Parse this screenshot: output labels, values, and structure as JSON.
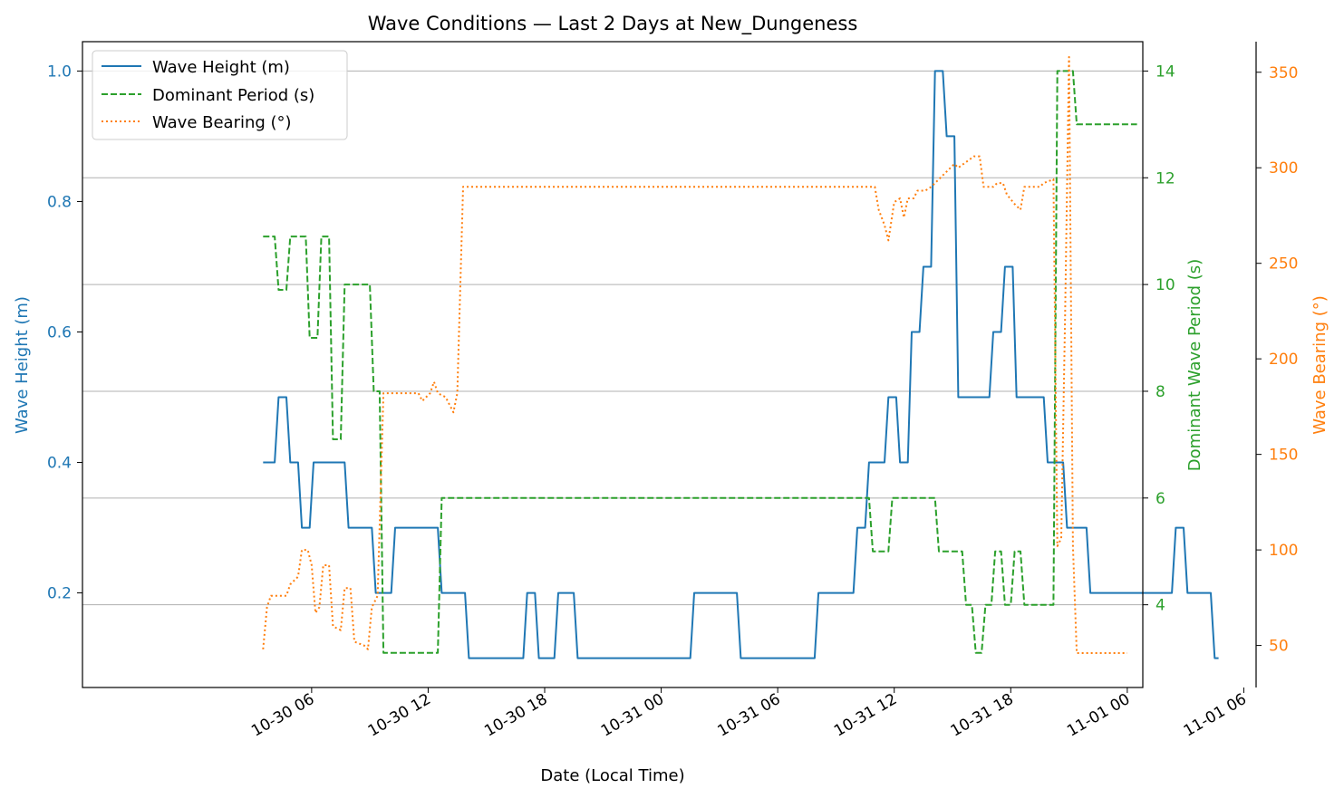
{
  "chart_data": {
    "type": "line",
    "title": "Wave Conditions — Last 2 Days at New_Dungeness",
    "xlabel": "Date (Local Time)",
    "x_range_hours": [
      -5.8,
      48.8
    ],
    "x_ticks": [
      {
        "h": 6,
        "label": "10-30 06"
      },
      {
        "h": 12,
        "label": "10-30 12"
      },
      {
        "h": 18,
        "label": "10-30 18"
      },
      {
        "h": 24,
        "label": "10-31 00"
      },
      {
        "h": 30,
        "label": "10-31 06"
      },
      {
        "h": 36,
        "label": "10-31 12"
      },
      {
        "h": 42,
        "label": "10-31 18"
      },
      {
        "h": 48,
        "label": "11-01 00"
      },
      {
        "h": 54,
        "label": "11-01 06"
      }
    ],
    "x_origin": "10-30 00",
    "grid": "horizontal (right axis)",
    "legend_position": "upper-left",
    "axes": {
      "left": {
        "label": "Wave Height (m)",
        "ylim": [
          0.055,
          1.045
        ],
        "ticks": [
          0.2,
          0.4,
          0.6,
          0.8,
          1.0
        ],
        "tick_labels": [
          "0.2",
          "0.4",
          "0.6",
          "0.8",
          "1.0"
        ],
        "color": "#1f77b4"
      },
      "right1": {
        "label": "Dominant Wave Period (s)",
        "ylim": [
          2.45,
          14.55
        ],
        "ticks": [
          4,
          6,
          8,
          10,
          12,
          14
        ],
        "tick_labels": [
          "4",
          "6",
          "8",
          "10",
          "12",
          "14"
        ],
        "color": "#2ca02c"
      },
      "right2": {
        "label": "Wave Bearing (°)",
        "ylim": [
          28,
          366
        ],
        "ticks": [
          50,
          100,
          150,
          200,
          250,
          300,
          350
        ],
        "tick_labels": [
          "50",
          "100",
          "150",
          "200",
          "250",
          "300",
          "350"
        ],
        "color": "#ff7f0e"
      }
    },
    "series": [
      {
        "name": "Wave Height (m)",
        "axis": "left",
        "color": "#1f77b4",
        "style": "solid",
        "points": [
          [
            3.5,
            0.4
          ],
          [
            4.1,
            0.4
          ],
          [
            4.3,
            0.5
          ],
          [
            4.7,
            0.5
          ],
          [
            4.9,
            0.4
          ],
          [
            5.3,
            0.4
          ],
          [
            5.5,
            0.3
          ],
          [
            5.9,
            0.3
          ],
          [
            6.1,
            0.4
          ],
          [
            7.7,
            0.4
          ],
          [
            7.9,
            0.3
          ],
          [
            9.1,
            0.3
          ],
          [
            9.3,
            0.2
          ],
          [
            10.1,
            0.2
          ],
          [
            10.3,
            0.3
          ],
          [
            12.5,
            0.3
          ],
          [
            12.7,
            0.2
          ],
          [
            13.9,
            0.2
          ],
          [
            14.1,
            0.1
          ],
          [
            16.9,
            0.1
          ],
          [
            17.1,
            0.2
          ],
          [
            17.5,
            0.2
          ],
          [
            17.7,
            0.1
          ],
          [
            18.5,
            0.1
          ],
          [
            18.7,
            0.2
          ],
          [
            19.5,
            0.2
          ],
          [
            19.7,
            0.1
          ],
          [
            25.5,
            0.1
          ],
          [
            25.7,
            0.2
          ],
          [
            27.9,
            0.2
          ],
          [
            28.1,
            0.1
          ],
          [
            31.9,
            0.1
          ],
          [
            32.1,
            0.2
          ],
          [
            33.9,
            0.2
          ],
          [
            34.1,
            0.3
          ],
          [
            34.5,
            0.3
          ],
          [
            34.7,
            0.4
          ],
          [
            35.5,
            0.4
          ],
          [
            35.7,
            0.5
          ],
          [
            36.1,
            0.5
          ],
          [
            36.3,
            0.4
          ],
          [
            36.7,
            0.4
          ],
          [
            36.9,
            0.6
          ],
          [
            37.3,
            0.6
          ],
          [
            37.5,
            0.7
          ],
          [
            37.9,
            0.7
          ],
          [
            38.1,
            1.0
          ],
          [
            38.5,
            1.0
          ],
          [
            38.7,
            0.9
          ],
          [
            39.1,
            0.9
          ],
          [
            39.3,
            0.5
          ],
          [
            40.9,
            0.5
          ],
          [
            41.1,
            0.6
          ],
          [
            41.5,
            0.6
          ],
          [
            41.7,
            0.7
          ],
          [
            42.1,
            0.7
          ],
          [
            42.3,
            0.5
          ],
          [
            43.7,
            0.5
          ],
          [
            43.9,
            0.4
          ],
          [
            44.7,
            0.4
          ],
          [
            44.9,
            0.3
          ],
          [
            45.9,
            0.3
          ],
          [
            46.1,
            0.2
          ],
          [
            50.3,
            0.2
          ],
          [
            50.5,
            0.3
          ],
          [
            50.9,
            0.3
          ],
          [
            51.1,
            0.2
          ],
          [
            52.3,
            0.2
          ],
          [
            52.5,
            0.1
          ],
          [
            52.7,
            0.1
          ]
        ]
      },
      {
        "name": "Dominant Period (s)",
        "axis": "right1",
        "color": "#2ca02c",
        "style": "dashed",
        "points": [
          [
            3.5,
            10.9
          ],
          [
            4.1,
            10.9
          ],
          [
            4.3,
            9.9
          ],
          [
            4.7,
            9.9
          ],
          [
            4.9,
            10.9
          ],
          [
            5.7,
            10.9
          ],
          [
            5.9,
            9.0
          ],
          [
            6.3,
            9.0
          ],
          [
            6.5,
            10.9
          ],
          [
            6.9,
            10.9
          ],
          [
            7.1,
            7.1
          ],
          [
            7.5,
            7.1
          ],
          [
            7.7,
            10.0
          ],
          [
            9.0,
            10.0
          ],
          [
            9.2,
            8.0
          ],
          [
            9.5,
            8.0
          ],
          [
            9.7,
            3.1
          ],
          [
            12.5,
            3.1
          ],
          [
            12.7,
            6.0
          ],
          [
            34.7,
            6.0
          ],
          [
            34.9,
            5.0
          ],
          [
            35.7,
            5.0
          ],
          [
            35.9,
            6.0
          ],
          [
            38.1,
            6.0
          ],
          [
            38.3,
            5.0
          ],
          [
            39.5,
            5.0
          ],
          [
            39.7,
            4.0
          ],
          [
            40.0,
            4.0
          ],
          [
            40.2,
            3.1
          ],
          [
            40.5,
            3.1
          ],
          [
            40.7,
            4.0
          ],
          [
            41.0,
            4.0
          ],
          [
            41.2,
            5.0
          ],
          [
            41.5,
            5.0
          ],
          [
            41.7,
            4.0
          ],
          [
            42.0,
            4.0
          ],
          [
            42.2,
            5.0
          ],
          [
            42.5,
            5.0
          ],
          [
            42.7,
            4.0
          ],
          [
            44.2,
            4.0
          ],
          [
            44.4,
            14.0
          ],
          [
            45.2,
            14.0
          ],
          [
            45.4,
            13.0
          ],
          [
            48.5,
            13.0
          ]
        ]
      },
      {
        "name": "Wave Bearing (°)",
        "axis": "right2",
        "color": "#ff7f0e",
        "style": "dotted",
        "points": [
          [
            3.5,
            48
          ],
          [
            3.7,
            70
          ],
          [
            3.9,
            76
          ],
          [
            4.7,
            76
          ],
          [
            4.9,
            82
          ],
          [
            5.3,
            86
          ],
          [
            5.5,
            100
          ],
          [
            5.8,
            100
          ],
          [
            6.0,
            92
          ],
          [
            6.2,
            67
          ],
          [
            6.4,
            70
          ],
          [
            6.6,
            92
          ],
          [
            6.9,
            92
          ],
          [
            7.1,
            60
          ],
          [
            7.5,
            58
          ],
          [
            7.7,
            80
          ],
          [
            8.0,
            80
          ],
          [
            8.2,
            52
          ],
          [
            8.7,
            50
          ],
          [
            8.9,
            48
          ],
          [
            9.1,
            70
          ],
          [
            9.4,
            76
          ],
          [
            9.7,
            182
          ],
          [
            11.5,
            182
          ],
          [
            11.7,
            178
          ],
          [
            12.1,
            182
          ],
          [
            12.3,
            188
          ],
          [
            12.5,
            182
          ],
          [
            12.9,
            180
          ],
          [
            13.3,
            172
          ],
          [
            13.5,
            182
          ],
          [
            13.8,
            290
          ],
          [
            35.0,
            290
          ],
          [
            35.2,
            278
          ],
          [
            35.5,
            270
          ],
          [
            35.7,
            262
          ],
          [
            36.0,
            282
          ],
          [
            36.3,
            284
          ],
          [
            36.5,
            274
          ],
          [
            36.7,
            284
          ],
          [
            37.0,
            284
          ],
          [
            37.2,
            288
          ],
          [
            37.6,
            288
          ],
          [
            37.9,
            290
          ],
          [
            38.3,
            294
          ],
          [
            38.7,
            298
          ],
          [
            39.1,
            302
          ],
          [
            39.3,
            300
          ],
          [
            39.7,
            303
          ],
          [
            40.1,
            306
          ],
          [
            40.4,
            306
          ],
          [
            40.6,
            290
          ],
          [
            41.1,
            290
          ],
          [
            41.3,
            292
          ],
          [
            41.6,
            292
          ],
          [
            41.8,
            286
          ],
          [
            42.2,
            281
          ],
          [
            42.5,
            278
          ],
          [
            42.7,
            290
          ],
          [
            43.5,
            290
          ],
          [
            43.7,
            292
          ],
          [
            44.2,
            294
          ],
          [
            44.4,
            102
          ],
          [
            44.6,
            106
          ],
          [
            44.8,
            224
          ],
          [
            45.0,
            358
          ],
          [
            45.2,
            102
          ],
          [
            45.4,
            46
          ],
          [
            48.0,
            46
          ]
        ]
      }
    ]
  }
}
